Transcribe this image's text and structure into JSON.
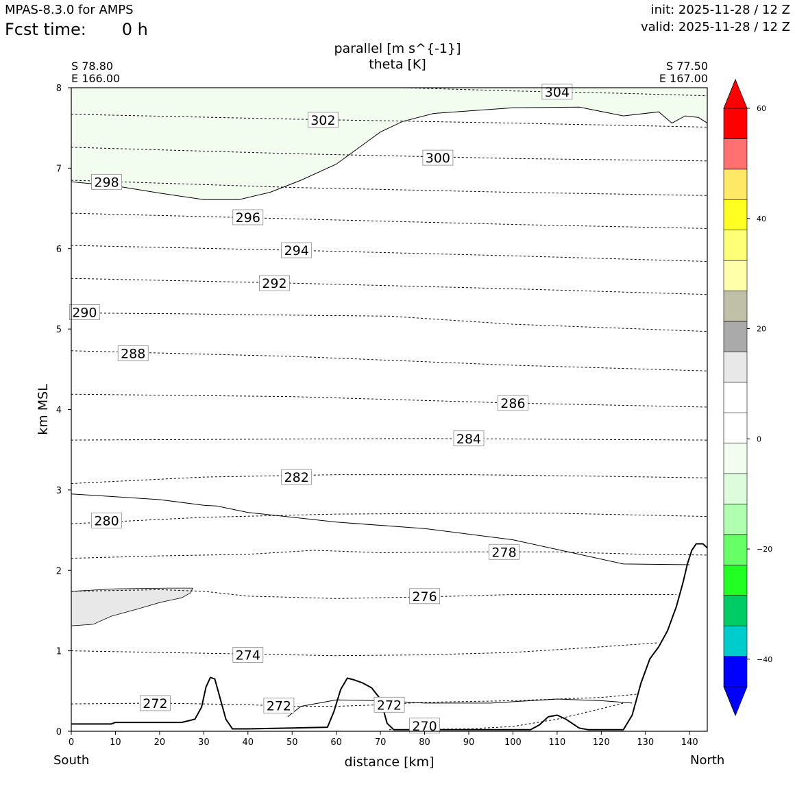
{
  "header": {
    "app_title": "MPAS-8.3.0 for AMPS",
    "fcst_label": "Fcst time:",
    "fcst_value": "0 h",
    "init": "init: 2025-11-28 / 12 Z",
    "valid": "valid: 2025-11-28 / 12 Z"
  },
  "chart_data": {
    "type": "cross-section",
    "title": [
      "parallel [m s^{-1}]",
      "theta [K]"
    ],
    "xlabel": "distance [km]",
    "ylabel": "km MSL",
    "xlim": [
      0,
      144
    ],
    "ylim": [
      0,
      8
    ],
    "xticks": [
      0,
      10,
      20,
      30,
      40,
      50,
      60,
      70,
      80,
      90,
      100,
      110,
      120,
      130,
      140
    ],
    "yticks": [
      0,
      1,
      2,
      3,
      4,
      5,
      6,
      7,
      8
    ],
    "endpoints": {
      "left": {
        "lat": "S 78.80",
        "lon": "E 166.00",
        "label": "South"
      },
      "right": {
        "lat": "S 77.50",
        "lon": "E 167.00",
        "label": "North"
      }
    },
    "theta_contours": [
      {
        "value": "270",
        "label_at": [
          80,
          0.07
        ],
        "points": [
          [
            72,
            0.02
          ],
          [
            90,
            0.03
          ],
          [
            100,
            0.06
          ],
          [
            110,
            0.15
          ],
          [
            120,
            0.28
          ],
          [
            125,
            0.35
          ]
        ]
      },
      {
        "value": "272",
        "label_at": [
          19,
          0.35
        ],
        "points": [
          [
            0,
            0.34
          ],
          [
            20,
            0.35
          ],
          [
            40,
            0.33
          ],
          [
            50,
            0.31
          ],
          [
            60,
            0.31
          ],
          [
            70,
            0.33
          ],
          [
            80,
            0.36
          ],
          [
            90,
            0.37
          ],
          [
            100,
            0.38
          ],
          [
            110,
            0.4
          ],
          [
            120,
            0.42
          ],
          [
            128,
            0.46
          ]
        ]
      },
      {
        "value": "272",
        "label_at": [
          47,
          0.32
        ],
        "points": []
      },
      {
        "value": "272",
        "label_at": [
          72,
          0.33
        ],
        "points": []
      },
      {
        "value": "274",
        "label_at": [
          40,
          0.95
        ],
        "points": [
          [
            0,
            1.0
          ],
          [
            20,
            0.98
          ],
          [
            40,
            0.96
          ],
          [
            60,
            0.94
          ],
          [
            80,
            0.95
          ],
          [
            100,
            0.98
          ],
          [
            120,
            1.05
          ],
          [
            133,
            1.1
          ]
        ]
      },
      {
        "value": "276",
        "label_at": [
          80,
          1.68
        ],
        "points": [
          [
            0,
            1.74
          ],
          [
            20,
            1.76
          ],
          [
            30,
            1.74
          ],
          [
            40,
            1.68
          ],
          [
            60,
            1.65
          ],
          [
            80,
            1.67
          ],
          [
            100,
            1.7
          ],
          [
            120,
            1.7
          ],
          [
            137,
            1.7
          ]
        ]
      },
      {
        "value": "278",
        "label_at": [
          98,
          2.23
        ],
        "points": [
          [
            0,
            2.15
          ],
          [
            20,
            2.18
          ],
          [
            40,
            2.2
          ],
          [
            55,
            2.25
          ],
          [
            70,
            2.22
          ],
          [
            90,
            2.23
          ],
          [
            110,
            2.23
          ],
          [
            130,
            2.2
          ],
          [
            144,
            2.19
          ]
        ]
      },
      {
        "value": "280",
        "label_at": [
          8,
          2.62
        ],
        "points": [
          [
            0,
            2.58
          ],
          [
            30,
            2.66
          ],
          [
            60,
            2.7
          ],
          [
            90,
            2.71
          ],
          [
            110,
            2.71
          ],
          [
            144,
            2.67
          ]
        ]
      },
      {
        "value": "282",
        "label_at": [
          51,
          3.16
        ],
        "points": [
          [
            0,
            3.08
          ],
          [
            30,
            3.16
          ],
          [
            60,
            3.19
          ],
          [
            90,
            3.19
          ],
          [
            120,
            3.17
          ],
          [
            144,
            3.15
          ]
        ]
      },
      {
        "value": "284",
        "label_at": [
          90,
          3.64
        ],
        "points": [
          [
            0,
            3.62
          ],
          [
            40,
            3.63
          ],
          [
            80,
            3.64
          ],
          [
            110,
            3.63
          ],
          [
            144,
            3.62
          ]
        ]
      },
      {
        "value": "286",
        "label_at": [
          100,
          4.08
        ],
        "points": [
          [
            0,
            4.19
          ],
          [
            50,
            4.16
          ],
          [
            100,
            4.08
          ],
          [
            144,
            4.03
          ]
        ]
      },
      {
        "value": "288",
        "label_at": [
          14,
          4.7
        ],
        "points": [
          [
            0,
            4.73
          ],
          [
            50,
            4.66
          ],
          [
            100,
            4.55
          ],
          [
            144,
            4.48
          ]
        ]
      },
      {
        "value": "290",
        "label_at": [
          3,
          5.21
        ],
        "points": [
          [
            0,
            5.2
          ],
          [
            25,
            5.19
          ],
          [
            38,
            5.18
          ],
          [
            55,
            5.17
          ],
          [
            72,
            5.16
          ],
          [
            100,
            5.06
          ],
          [
            144,
            4.97
          ]
        ]
      },
      {
        "value": "292",
        "label_at": [
          46,
          5.57
        ],
        "points": [
          [
            0,
            5.63
          ],
          [
            50,
            5.57
          ],
          [
            100,
            5.5
          ],
          [
            144,
            5.43
          ]
        ]
      },
      {
        "value": "294",
        "label_at": [
          51,
          5.98
        ],
        "points": [
          [
            0,
            6.04
          ],
          [
            50,
            5.98
          ],
          [
            100,
            5.91
          ],
          [
            144,
            5.84
          ]
        ]
      },
      {
        "value": "296",
        "label_at": [
          40,
          6.39
        ],
        "points": [
          [
            0,
            6.44
          ],
          [
            50,
            6.37
          ],
          [
            100,
            6.3
          ],
          [
            144,
            6.25
          ]
        ]
      },
      {
        "value": "298",
        "label_at": [
          8,
          6.83
        ],
        "points": [
          [
            0,
            6.85
          ],
          [
            50,
            6.76
          ],
          [
            100,
            6.7
          ],
          [
            144,
            6.66
          ]
        ]
      },
      {
        "value": "300",
        "label_at": [
          83,
          7.13
        ],
        "points": [
          [
            0,
            7.26
          ],
          [
            50,
            7.18
          ],
          [
            100,
            7.12
          ],
          [
            144,
            7.09
          ]
        ]
      },
      {
        "value": "302",
        "label_at": [
          57,
          7.6
        ],
        "points": [
          [
            0,
            7.67
          ],
          [
            50,
            7.61
          ],
          [
            100,
            7.56
          ],
          [
            144,
            7.51
          ]
        ]
      },
      {
        "value": "304",
        "label_at": [
          110,
          7.95
        ],
        "points": [
          [
            75,
            8.0
          ],
          [
            100,
            7.96
          ],
          [
            125,
            7.93
          ],
          [
            144,
            7.9
          ]
        ]
      }
    ],
    "wind_contours": [
      {
        "points": [
          [
            0,
            2.95
          ],
          [
            20,
            2.88
          ],
          [
            30,
            2.81
          ],
          [
            33,
            2.8
          ],
          [
            40,
            2.72
          ],
          [
            60,
            2.6
          ],
          [
            80,
            2.52
          ],
          [
            100,
            2.38
          ],
          [
            115,
            2.2
          ],
          [
            125,
            2.08
          ],
          [
            140,
            2.07
          ]
        ]
      },
      {
        "points": [
          [
            0,
            6.83
          ],
          [
            10,
            6.78
          ],
          [
            20,
            6.69
          ],
          [
            30,
            6.61
          ],
          [
            38,
            6.61
          ],
          [
            45,
            6.7
          ],
          [
            52,
            6.85
          ],
          [
            60,
            7.05
          ],
          [
            65,
            7.25
          ],
          [
            70,
            7.45
          ],
          [
            75,
            7.58
          ],
          [
            82,
            7.68
          ],
          [
            100,
            7.75
          ],
          [
            115,
            7.76
          ],
          [
            125,
            7.65
          ],
          [
            133,
            7.7
          ],
          [
            136,
            7.56
          ],
          [
            139,
            7.65
          ],
          [
            142,
            7.63
          ],
          [
            144,
            7.56
          ]
        ]
      },
      {
        "points": [
          [
            49,
            0.18
          ],
          [
            52,
            0.31
          ],
          [
            60,
            0.39
          ],
          [
            70,
            0.38
          ],
          [
            80,
            0.35
          ],
          [
            95,
            0.35
          ],
          [
            110,
            0.4
          ],
          [
            120,
            0.38
          ],
          [
            127,
            0.35
          ]
        ]
      }
    ],
    "shaded_regions": [
      {
        "color": "#f2fdf0",
        "bin": "-10 to -5",
        "polygon": [
          [
            0,
            8.0
          ],
          [
            144,
            8.0
          ],
          [
            144,
            7.56
          ],
          [
            142,
            7.63
          ],
          [
            139,
            7.65
          ],
          [
            136,
            7.56
          ],
          [
            133,
            7.7
          ],
          [
            125,
            7.65
          ],
          [
            115,
            7.76
          ],
          [
            100,
            7.75
          ],
          [
            82,
            7.68
          ],
          [
            75,
            7.58
          ],
          [
            70,
            7.45
          ],
          [
            65,
            7.25
          ],
          [
            60,
            7.05
          ],
          [
            52,
            6.85
          ],
          [
            45,
            6.7
          ],
          [
            38,
            6.61
          ],
          [
            30,
            6.61
          ],
          [
            20,
            6.69
          ],
          [
            10,
            6.78
          ],
          [
            0,
            6.83
          ]
        ]
      },
      {
        "color": "#e8e8e8",
        "bin": "5 to 10",
        "polygon": [
          [
            0,
            1.74
          ],
          [
            10,
            1.77
          ],
          [
            22,
            1.78
          ],
          [
            27.5,
            1.78
          ],
          [
            27,
            1.72
          ],
          [
            25,
            1.66
          ],
          [
            20,
            1.6
          ],
          [
            15,
            1.52
          ],
          [
            9,
            1.43
          ],
          [
            5,
            1.33
          ],
          [
            0,
            1.31
          ]
        ]
      }
    ],
    "terrain": {
      "color": "#ffffff",
      "points": [
        [
          0,
          0.09
        ],
        [
          9,
          0.09
        ],
        [
          10,
          0.11
        ],
        [
          25,
          0.11
        ],
        [
          28,
          0.15
        ],
        [
          29.5,
          0.3
        ],
        [
          30.5,
          0.55
        ],
        [
          31.5,
          0.67
        ],
        [
          32.5,
          0.65
        ],
        [
          33.5,
          0.45
        ],
        [
          35,
          0.15
        ],
        [
          36.5,
          0.03
        ],
        [
          40,
          0.03
        ],
        [
          50,
          0.04
        ],
        [
          58,
          0.05
        ],
        [
          59.5,
          0.25
        ],
        [
          61,
          0.52
        ],
        [
          62.5,
          0.66
        ],
        [
          64,
          0.64
        ],
        [
          66,
          0.6
        ],
        [
          68,
          0.54
        ],
        [
          70,
          0.4
        ],
        [
          71.5,
          0.1
        ],
        [
          73,
          0.02
        ],
        [
          104,
          0.02
        ],
        [
          106,
          0.08
        ],
        [
          108,
          0.18
        ],
        [
          110,
          0.2
        ],
        [
          112,
          0.15
        ],
        [
          115,
          0.04
        ],
        [
          117,
          0.02
        ],
        [
          125,
          0.02
        ],
        [
          127,
          0.2
        ],
        [
          129,
          0.6
        ],
        [
          131,
          0.9
        ],
        [
          133,
          1.05
        ],
        [
          135,
          1.25
        ],
        [
          137,
          1.55
        ],
        [
          138.5,
          1.85
        ],
        [
          139.5,
          2.08
        ],
        [
          140.5,
          2.25
        ],
        [
          141.5,
          2.33
        ],
        [
          143,
          2.33
        ],
        [
          144,
          2.28
        ]
      ]
    },
    "colorbar": {
      "bins": [
        {
          "color": "#0000ff"
        },
        {
          "color": "#00cccc"
        },
        {
          "color": "#00cc66"
        },
        {
          "color": "#22ff22"
        },
        {
          "color": "#66ff66"
        },
        {
          "color": "#b0ffb0"
        },
        {
          "color": "#dcfcdc"
        },
        {
          "color": "#f2fdf0"
        },
        {
          "color": "#ffffff"
        },
        {
          "color": "#ffffff"
        },
        {
          "color": "#e8e8e8"
        },
        {
          "color": "#aaaaaa"
        },
        {
          "color": "#c0c0a8"
        },
        {
          "color": "#ffffaa"
        },
        {
          "color": "#ffff77"
        },
        {
          "color": "#ffff22"
        },
        {
          "color": "#ffe866"
        },
        {
          "color": "#ff7070"
        },
        {
          "color": "#ff0000"
        }
      ],
      "extend_low_color": "#0000ff",
      "extend_high_color": "#ff0000",
      "range": [
        -45,
        60
      ],
      "ticks": [
        -40,
        -20,
        0,
        20,
        40,
        60
      ],
      "tick_labels": [
        "−40",
        "−20",
        "0",
        "20",
        "40",
        "60"
      ]
    }
  }
}
